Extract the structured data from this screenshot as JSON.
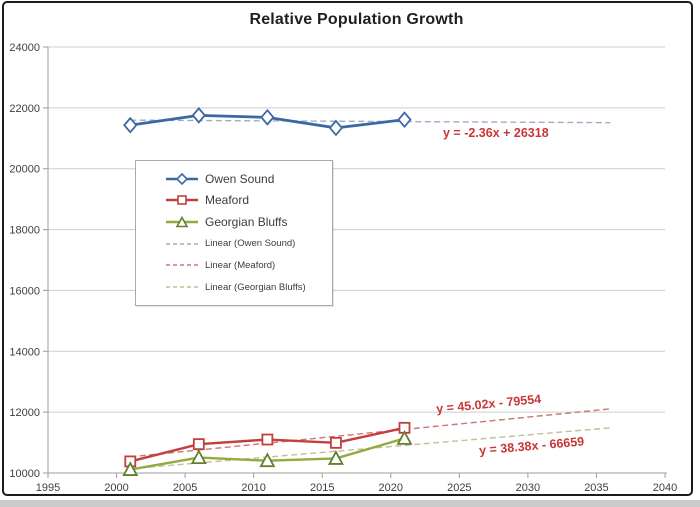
{
  "chart_data": {
    "type": "line",
    "title": "Relative Population Growth",
    "x": [
      2001,
      2006,
      2011,
      2016,
      2021
    ],
    "series": [
      {
        "name": "Owen Sound",
        "values": [
          21431,
          21753,
          21688,
          21341,
          21612
        ],
        "color": "#3B68A5",
        "marker": "diamond"
      },
      {
        "name": "Meaford",
        "values": [
          10381,
          10948,
          11100,
          10991,
          11485
        ],
        "color": "#C1403E",
        "marker": "square"
      },
      {
        "name": "Georgian Bluffs",
        "values": [
          10113,
          10506,
          10404,
          10479,
          11137
        ],
        "color": "#8FAC3F",
        "marker": "triangle",
        "marker_stroke": "#647F2E"
      }
    ],
    "trendlines": [
      {
        "name": "Linear (Owen Sound)",
        "equation": "y = -2.36x + 26318",
        "slope": -2.36,
        "intercept": 26318,
        "x_start": 2001,
        "x_end": 2036,
        "color": "#99AFC9"
      },
      {
        "name": "Linear (Meaford)",
        "equation": "y = 45.02x - 79554",
        "slope": 45.02,
        "intercept": -79554,
        "x_start": 2001,
        "x_end": 2036,
        "color": "#CC7671"
      },
      {
        "name": "Linear (Georgian Bluffs)",
        "equation": "y = 38.38x - 66659",
        "slope": 38.38,
        "intercept": -66659,
        "x_start": 2001,
        "x_end": 2036,
        "color": "#C2BE97"
      }
    ],
    "xlim": [
      1995,
      2040
    ],
    "ylim": [
      10000,
      24000
    ],
    "x_ticks": [
      1995,
      2000,
      2005,
      2010,
      2015,
      2020,
      2025,
      2030,
      2035,
      2040
    ],
    "y_ticks": [
      10000,
      12000,
      14000,
      16000,
      18000,
      20000,
      22000,
      24000
    ],
    "grid": "horizontal",
    "legend_position": "upper-left-inside",
    "equation_color": "#C93636",
    "grid_color": "#CDCDCD",
    "axis_color": "#9C9C9C",
    "tick_label_color": "#3F3F3F"
  },
  "legend": {
    "items": [
      {
        "label": "Owen Sound",
        "swatch": "line-diamond",
        "color": "#3B68A5",
        "size": "lg"
      },
      {
        "label": "Meaford",
        "swatch": "line-square",
        "color": "#C1403E",
        "size": "lg"
      },
      {
        "label": "Georgian Bluffs",
        "swatch": "line-triangle",
        "color": "#8FAC3F",
        "marker_stroke": "#647F2E",
        "size": "lg"
      },
      {
        "label": "Linear (Owen Sound)",
        "swatch": "dash",
        "color": "#99AFC9",
        "size": "sm"
      },
      {
        "label": "Linear (Meaford)",
        "swatch": "dash",
        "color": "#CC7671",
        "size": "sm"
      },
      {
        "label": "Linear (Georgian Bluffs)",
        "swatch": "dash",
        "color": "#C2BE97",
        "size": "sm"
      }
    ]
  }
}
